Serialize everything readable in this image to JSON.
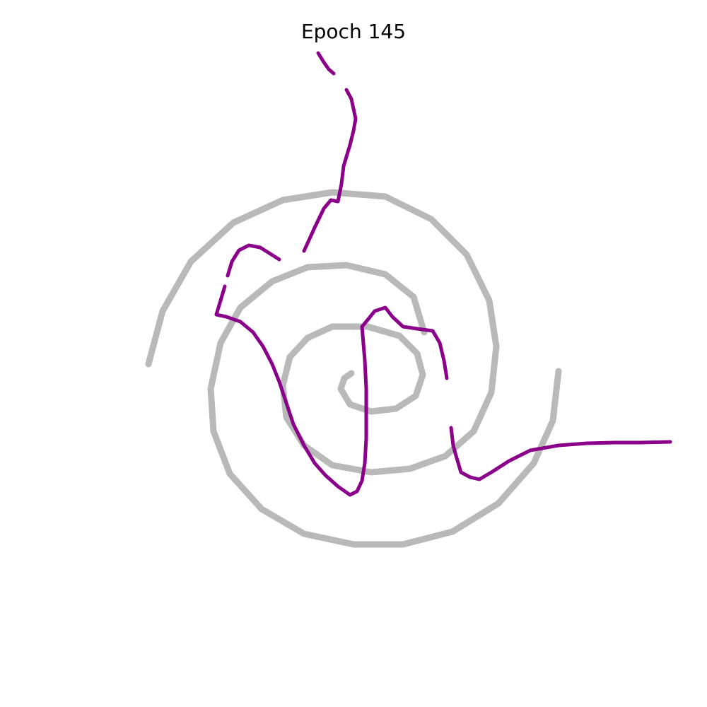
{
  "chart_data": {
    "type": "scatter",
    "title": "Epoch 145",
    "xlim": [
      -5,
      5
    ],
    "ylim": [
      -5,
      5
    ],
    "series": [
      {
        "color": "#808080",
        "mode": "lines",
        "x": [
          -2.9,
          -2.7,
          -2.3,
          -1.7,
          -1.0,
          -0.3,
          0.45,
          1.1,
          1.6,
          1.92,
          2.02,
          1.95,
          1.7,
          1.3,
          0.8,
          0.25,
          -0.3,
          -0.7,
          -0.95,
          -1.0,
          -0.9,
          -0.65,
          -0.3,
          0.2,
          0.65,
          0.9,
          0.98,
          0.88,
          0.6,
          0.25,
          -0.05,
          -0.18,
          -0.13,
          -0.03,
          null,
          2.9,
          2.82,
          2.55,
          2.05,
          1.4,
          0.7,
          0,
          -0.7,
          -1.3,
          -1.75,
          -1.98,
          -2.02,
          -1.88,
          -1.6,
          -1.15,
          -0.65,
          -0.1,
          0.45,
          0.85,
          1.0
        ],
        "values": [
          -0.15,
          0.6,
          1.3,
          1.85,
          2.17,
          2.28,
          2.22,
          1.9,
          1.4,
          0.75,
          0.1,
          -0.55,
          -1.1,
          -1.45,
          -1.63,
          -1.68,
          -1.58,
          -1.3,
          -0.9,
          -0.45,
          -0.05,
          0.22,
          0.38,
          0.38,
          0.25,
          0,
          -0.3,
          -0.6,
          -0.78,
          -0.82,
          -0.72,
          -0.5,
          -0.35,
          -0.28,
          null,
          -0.25,
          -0.95,
          -1.55,
          -2.12,
          -2.52,
          -2.7,
          -2.7,
          -2.55,
          -2.2,
          -1.7,
          -1.1,
          -0.5,
          0.15,
          0.65,
          1.02,
          1.22,
          1.25,
          1.12,
          0.8,
          0.3
        ]
      },
      {
        "color": "#8b008b",
        "mode": "lines",
        "x": [
          -0.5,
          -0.42,
          -0.35,
          -0.28,
          null,
          -0.1,
          -0.03,
          0.03,
          0,
          -0.05,
          -0.14,
          -0.17,
          -0.22,
          -0.32,
          -0.42,
          -0.55,
          -0.7,
          null,
          -0.8,
          null,
          -1.05,
          -1.32,
          -1.48,
          -1.62,
          -1.72,
          -1.78,
          null,
          -1.82,
          -1.88,
          -1.94,
          -1.8,
          -1.6,
          -1.42,
          -1.28,
          -1.15,
          -1.05,
          -0.95,
          -0.85,
          -0.7,
          -0.55,
          -0.4,
          -0.22,
          -0.05,
          0.05,
          0.12,
          0.16,
          0.18,
          0.18,
          0.16,
          0.12,
          0.22,
          0.3,
          0.45,
          0.55,
          0.7,
          0.9,
          1.12,
          1.22,
          1.28,
          1.32,
          null,
          1.38,
          1.41,
          1.46,
          1.52,
          1.65,
          1.78,
          1.95,
          2.2,
          2.5,
          2.9,
          3.3,
          3.7,
          4.05,
          4.48
        ],
        "values": [
          4.25,
          4.12,
          4.02,
          3.96,
          null,
          3.73,
          3.6,
          3.32,
          3.15,
          2.95,
          2.65,
          2.4,
          2.15,
          2.17,
          2.05,
          1.78,
          1.45,
          null,
          1.22,
          null,
          1.33,
          1.5,
          1.53,
          1.46,
          1.3,
          1.1,
          null,
          0.95,
          0.75,
          0.55,
          0.52,
          0.45,
          0.3,
          0.1,
          -0.15,
          -0.4,
          -0.7,
          -1.0,
          -1.3,
          -1.55,
          -1.72,
          -1.88,
          -2.0,
          -1.95,
          -1.8,
          -1.55,
          -1.2,
          -0.5,
          -0.1,
          0.38,
          0.5,
          0.6,
          0.65,
          0.52,
          0.38,
          0.35,
          0.32,
          0.15,
          -0.1,
          -0.35,
          null,
          -1.05,
          -1.3,
          -1.48,
          -1.68,
          -1.75,
          -1.78,
          -1.68,
          -1.52,
          -1.37,
          -1.3,
          -1.27,
          -1.26,
          -1.26,
          -1.25
        ]
      }
    ]
  }
}
